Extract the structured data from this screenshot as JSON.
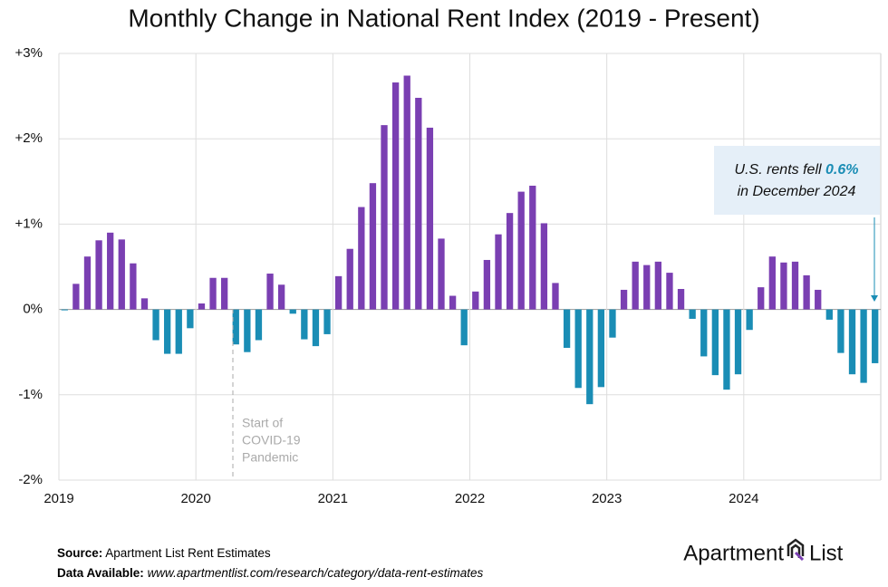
{
  "chart_data": {
    "type": "bar",
    "title": "Monthly Change in National Rent Index (2019 - Present)",
    "categories": [
      "2019",
      null,
      null,
      null,
      null,
      null,
      null,
      null,
      null,
      null,
      null,
      null,
      "2020",
      null,
      null,
      null,
      null,
      null,
      null,
      null,
      null,
      null,
      null,
      null,
      "2021",
      null,
      null,
      null,
      null,
      null,
      null,
      null,
      null,
      null,
      null,
      null,
      "2022",
      null,
      null,
      null,
      null,
      null,
      null,
      null,
      null,
      null,
      null,
      null,
      "2023",
      null,
      null,
      null,
      null,
      null,
      null,
      null,
      null,
      null,
      null,
      null,
      "2024",
      null,
      null,
      null,
      null,
      null,
      null,
      null,
      null,
      null,
      null,
      null
    ],
    "values": [
      -0.01,
      0.3,
      0.62,
      0.81,
      0.9,
      0.82,
      0.54,
      0.13,
      -0.36,
      -0.52,
      -0.52,
      -0.22,
      0.07,
      0.37,
      0.37,
      -0.41,
      -0.5,
      -0.36,
      0.42,
      0.29,
      -0.05,
      -0.35,
      -0.43,
      -0.29,
      0.39,
      0.71,
      1.2,
      1.48,
      2.16,
      2.66,
      2.74,
      2.48,
      2.13,
      0.83,
      0.16,
      -0.42,
      0.21,
      0.58,
      0.88,
      1.13,
      1.38,
      1.45,
      1.01,
      0.31,
      -0.45,
      -0.92,
      -1.11,
      -0.91,
      -0.33,
      0.23,
      0.56,
      0.52,
      0.56,
      0.43,
      0.24,
      -0.11,
      -0.55,
      -0.77,
      -0.94,
      -0.76,
      -0.24,
      0.26,
      0.62,
      0.55,
      0.56,
      0.4,
      0.23,
      -0.12,
      -0.51,
      -0.76,
      -0.86,
      -0.63
    ],
    "positive_color": "#7a3fb2",
    "negative_color": "#1a8db5",
    "ylim": [
      -2,
      3
    ],
    "yticks": [
      {
        "value": -2,
        "label": "-2%"
      },
      {
        "value": -1,
        "label": "-1%"
      },
      {
        "value": 0,
        "label": "0%"
      },
      {
        "value": 1,
        "label": "+1%"
      },
      {
        "value": 2,
        "label": "+2%"
      },
      {
        "value": 3,
        "label": "+3%"
      }
    ],
    "grid": true,
    "annotations": {
      "covid": [
        "Start of",
        "COVID-19",
        "Pandemic"
      ],
      "callout": {
        "before": "U.S. rents fell ",
        "highlight": "0.6%",
        "after": "in December 2024"
      }
    }
  },
  "footer": {
    "source_label": "Source:",
    "source": "Apartment List Rent Estimates",
    "data_label": "Data Available:",
    "data_url": "www.apartmentlist.com/research/category/data-rent-estimates",
    "logo": [
      "Apartment",
      "List"
    ]
  }
}
